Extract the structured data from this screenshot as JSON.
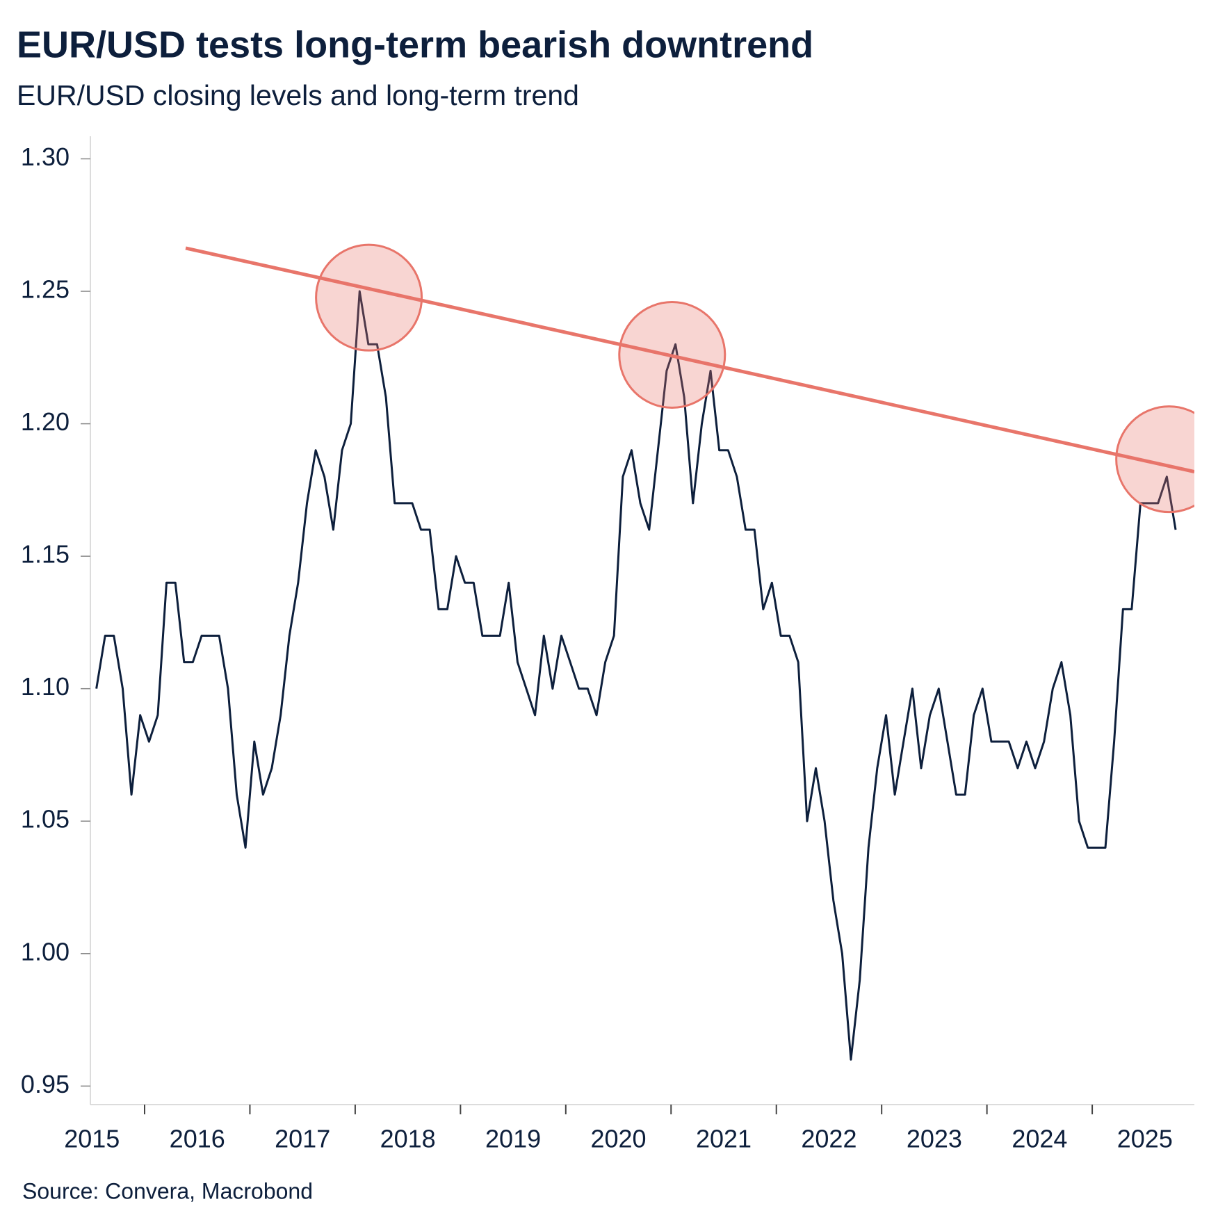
{
  "chart_data": {
    "type": "line",
    "title": "EUR/USD tests long-term bearish downtrend",
    "subtitle": "EUR/USD closing levels and long-term trend",
    "source": "Source: Convera, Macrobond",
    "xlim": [
      2015.485,
      2025.97
    ],
    "xticks": [
      2015,
      2016,
      2017,
      2018,
      2019,
      2020,
      2021,
      2022,
      2023,
      2024,
      2025
    ],
    "ylim": [
      0.943,
      1.308
    ],
    "yticks": [
      {
        "value": 1.3,
        "label": "1.30"
      },
      1.25,
      {
        "value": 1.2,
        "label": "1.20"
      },
      1.15,
      {
        "value": 1.1,
        "label": "1.10"
      },
      1.05,
      {
        "value": 1.0,
        "label": "1.00"
      },
      0.95
    ],
    "x": [
      2015.542,
      2015.625,
      2015.708,
      2015.792,
      2015.875,
      2015.958,
      2016.042,
      2016.125,
      2016.208,
      2016.292,
      2016.375,
      2016.458,
      2016.542,
      2016.625,
      2016.708,
      2016.792,
      2016.875,
      2016.958,
      2017.042,
      2017.125,
      2017.208,
      2017.292,
      2017.375,
      2017.458,
      2017.542,
      2017.625,
      2017.708,
      2017.792,
      2017.875,
      2017.958,
      2018.042,
      2018.125,
      2018.208,
      2018.292,
      2018.375,
      2018.458,
      2018.542,
      2018.625,
      2018.708,
      2018.792,
      2018.875,
      2018.958,
      2019.042,
      2019.125,
      2019.208,
      2019.292,
      2019.375,
      2019.458,
      2019.542,
      2019.625,
      2019.708,
      2019.792,
      2019.875,
      2019.958,
      2020.042,
      2020.125,
      2020.208,
      2020.292,
      2020.375,
      2020.458,
      2020.542,
      2020.625,
      2020.708,
      2020.792,
      2020.875,
      2020.958,
      2021.042,
      2021.125,
      2021.208,
      2021.292,
      2021.375,
      2021.458,
      2021.542,
      2021.625,
      2021.708,
      2021.792,
      2021.875,
      2021.958,
      2022.042,
      2022.125,
      2022.208,
      2022.292,
      2022.375,
      2022.458,
      2022.542,
      2022.625,
      2022.708,
      2022.792,
      2022.875,
      2022.958,
      2023.042,
      2023.125,
      2023.208,
      2023.292,
      2023.375,
      2023.458,
      2023.542,
      2023.625,
      2023.708,
      2023.792,
      2023.875,
      2023.958,
      2024.042,
      2024.125,
      2024.208,
      2024.292,
      2024.375,
      2024.458,
      2024.542,
      2024.625,
      2024.708,
      2024.792,
      2024.875,
      2024.958,
      2025.042,
      2025.125,
      2025.208,
      2025.292,
      2025.375,
      2025.458,
      2025.542,
      2025.625,
      2025.708,
      2025.792
    ],
    "series": [
      {
        "color": "#0d1f3c",
        "values": [
          1.1,
          1.12,
          1.12,
          1.1,
          1.06,
          1.09,
          1.08,
          1.09,
          1.14,
          1.14,
          1.11,
          1.11,
          1.12,
          1.12,
          1.12,
          1.1,
          1.06,
          1.04,
          1.08,
          1.06,
          1.07,
          1.09,
          1.12,
          1.14,
          1.17,
          1.19,
          1.18,
          1.16,
          1.19,
          1.2,
          1.25,
          1.23,
          1.23,
          1.21,
          1.17,
          1.17,
          1.17,
          1.16,
          1.16,
          1.13,
          1.13,
          1.15,
          1.14,
          1.14,
          1.12,
          1.12,
          1.12,
          1.14,
          1.11,
          1.1,
          1.09,
          1.12,
          1.1,
          1.12,
          1.11,
          1.1,
          1.1,
          1.09,
          1.11,
          1.12,
          1.18,
          1.19,
          1.17,
          1.16,
          1.19,
          1.22,
          1.23,
          1.21,
          1.17,
          1.2,
          1.22,
          1.19,
          1.19,
          1.18,
          1.16,
          1.16,
          1.13,
          1.14,
          1.12,
          1.12,
          1.11,
          1.05,
          1.07,
          1.05,
          1.02,
          1.0,
          0.96,
          0.99,
          1.04,
          1.07,
          1.09,
          1.06,
          1.08,
          1.1,
          1.07,
          1.09,
          1.1,
          1.08,
          1.06,
          1.06,
          1.09,
          1.1,
          1.08,
          1.08,
          1.08,
          1.07,
          1.08,
          1.07,
          1.08,
          1.1,
          1.11,
          1.09,
          1.05,
          1.04,
          1.04,
          1.04,
          1.08,
          1.13,
          1.13,
          1.17,
          1.17,
          1.17,
          1.18,
          1.16
        ]
      }
    ],
    "trend": {
      "color": "#e8756a",
      "x": [
        2016.39,
        2025.97
      ],
      "y": [
        1.2663,
        1.1819
      ]
    },
    "highlights": {
      "color": "#e8756a",
      "x": [
        2018.13,
        2021.01,
        2025.73
      ],
      "y": [
        1.2476,
        1.226,
        1.1866
      ]
    }
  }
}
